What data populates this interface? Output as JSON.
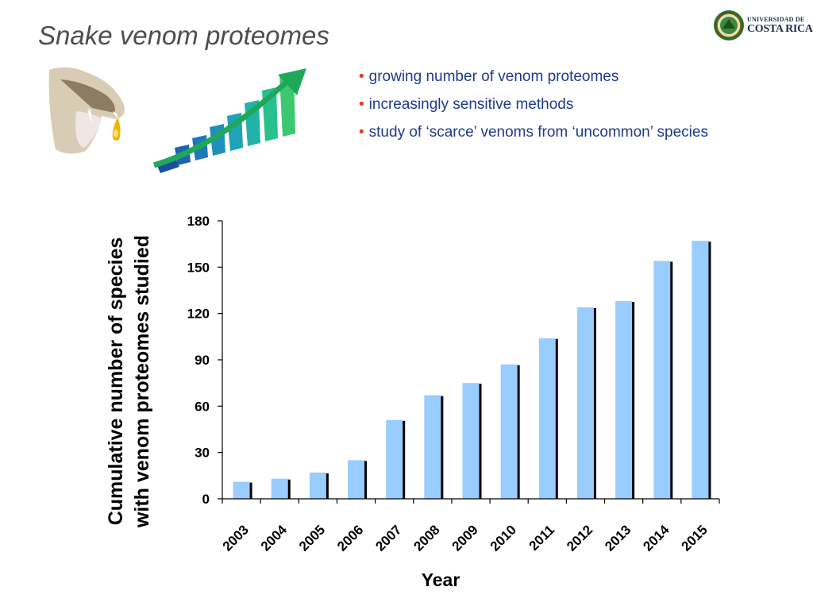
{
  "slide": {
    "title": "Snake venom proteomes"
  },
  "logo": {
    "line1": "UNIVERSIDAD DE",
    "line2": "COSTA RICA"
  },
  "bullets": {
    "marker": "•",
    "items": [
      "growing number of venom proteomes",
      "increasingly sensitive methods",
      "study of ‘scarce’ venoms from ‘uncommon’ species"
    ]
  },
  "colors": {
    "bar_fill": "#99ccff",
    "bar_shadow": "#000000",
    "bullet_text": "#1f3a8a",
    "bullet_marker": "#e03c1f",
    "title": "#4d4d4d"
  },
  "chart_data": {
    "type": "bar",
    "categories": [
      "2003",
      "2004",
      "2005",
      "2006",
      "2007",
      "2008",
      "2009",
      "2010",
      "2011",
      "2012",
      "2013",
      "2014",
      "2015"
    ],
    "values": [
      11,
      13,
      17,
      25,
      51,
      67,
      75,
      87,
      104,
      124,
      128,
      154,
      167
    ],
    "xlabel": "Year",
    "ylabel_line1": "Cumulative number of species",
    "ylabel_line2": "with venom proteomes studied",
    "ylim": [
      0,
      180
    ],
    "yticks": [
      0,
      30,
      60,
      90,
      120,
      150,
      180
    ],
    "grid": false,
    "legend": "none"
  }
}
